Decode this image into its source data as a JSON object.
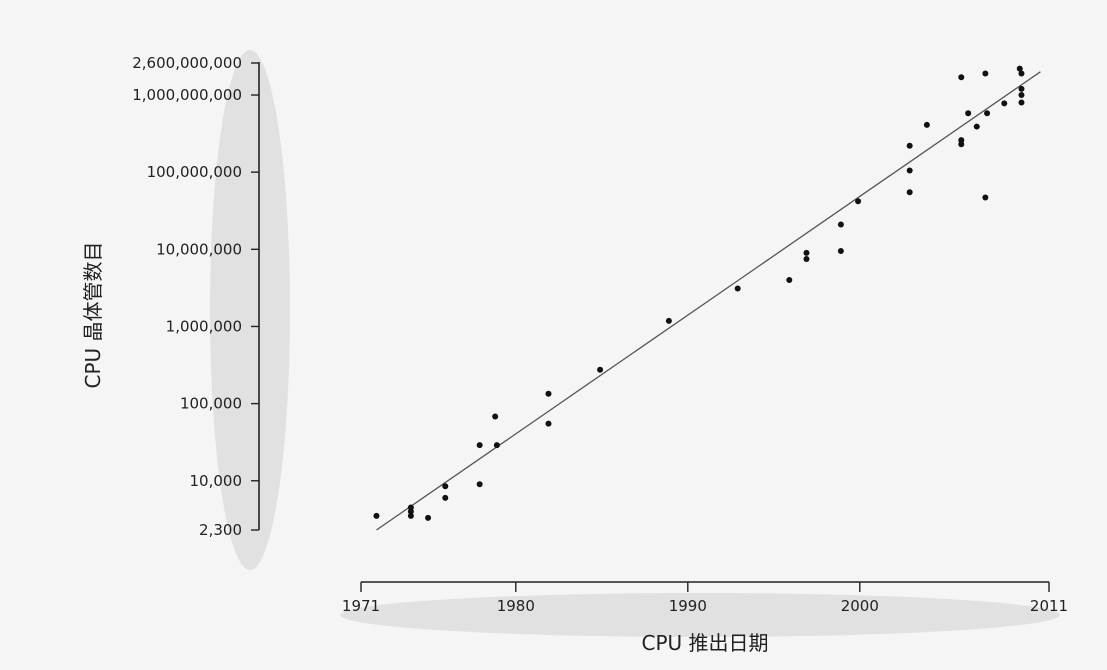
{
  "chart_data": {
    "type": "scatter",
    "xlabel": "CPU 推出日期",
    "ylabel": "CPU 晶体管数目",
    "x_ticks": [
      {
        "value": 1971,
        "label": "1971"
      },
      {
        "value": 1980,
        "label": "1980"
      },
      {
        "value": 1990,
        "label": "1990"
      },
      {
        "value": 2000,
        "label": "2000"
      },
      {
        "value": 2011,
        "label": "2011"
      }
    ],
    "y_scale": "log",
    "y_ticks": [
      {
        "value": 2300,
        "label": "2,300"
      },
      {
        "value": 10000,
        "label": "10,000"
      },
      {
        "value": 100000,
        "label": "100,000"
      },
      {
        "value": 1000000,
        "label": "1,000,000"
      },
      {
        "value": 10000000,
        "label": "10,000,000"
      },
      {
        "value": 100000000,
        "label": "100,000,000"
      },
      {
        "value": 1000000000,
        "label": "1,000,000,000"
      },
      {
        "value": 2600000000,
        "label": "2,600,000,000"
      }
    ],
    "xlim": [
      1971,
      2011
    ],
    "ylim": [
      2300,
      2600000000
    ],
    "points": [
      [
        1971.9,
        3500
      ],
      [
        1973.9,
        4500
      ],
      [
        1973.9,
        4000
      ],
      [
        1973.9,
        3500
      ],
      [
        1974.9,
        3300
      ],
      [
        1975.9,
        6000
      ],
      [
        1975.9,
        8500
      ],
      [
        1977.9,
        9000
      ],
      [
        1977.9,
        29000
      ],
      [
        1978.9,
        29000
      ],
      [
        1978.8,
        68000
      ],
      [
        1981.9,
        55000
      ],
      [
        1981.9,
        134000
      ],
      [
        1984.9,
        275000
      ],
      [
        1988.9,
        1180000
      ],
      [
        1992.9,
        3100000
      ],
      [
        1995.9,
        4000000
      ],
      [
        1996.9,
        7500000
      ],
      [
        1996.9,
        9000000
      ],
      [
        1998.9,
        9500000
      ],
      [
        1998.9,
        21000000
      ],
      [
        1999.9,
        42000000
      ],
      [
        2002.9,
        55000000
      ],
      [
        2002.9,
        105000000
      ],
      [
        2002.9,
        220000000
      ],
      [
        2003.9,
        410000000
      ],
      [
        2005.9,
        230000000
      ],
      [
        2005.9,
        260000000
      ],
      [
        2005.9,
        1700000000
      ],
      [
        2006.3,
        580000000
      ],
      [
        2006.8,
        390000000
      ],
      [
        2007.3,
        47000000
      ],
      [
        2007.3,
        1900000000
      ],
      [
        2007.4,
        580000000
      ],
      [
        2008.4,
        780000000
      ],
      [
        2009.3,
        2200000000
      ],
      [
        2009.4,
        1900000000
      ],
      [
        2009.4,
        1200000000
      ],
      [
        2009.4,
        1000000000
      ],
      [
        2009.4,
        800000000
      ]
    ],
    "trendline": {
      "from": [
        1971.9,
        2300
      ],
      "to": [
        2010.5,
        2000000000
      ]
    },
    "grid": false
  }
}
